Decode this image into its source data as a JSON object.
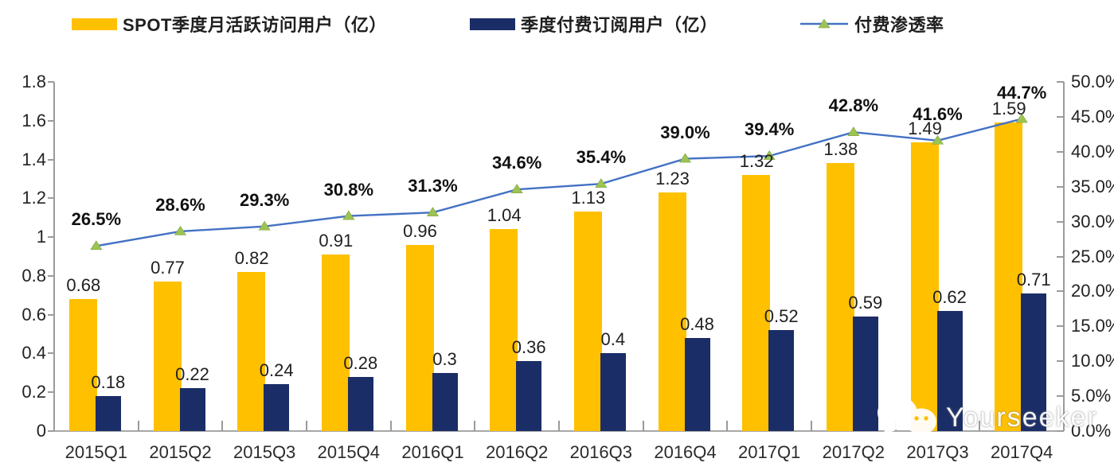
{
  "legend": [
    {
      "label": "SPOT季度月活跃访问用户（亿）"
    },
    {
      "label": "季度付费订阅用户（亿）"
    },
    {
      "label": "付费渗透率"
    }
  ],
  "chart_data": {
    "type": "bar+line-combo",
    "title": "",
    "categories": [
      "2015Q1",
      "2015Q2",
      "2015Q3",
      "2015Q4",
      "2016Q1",
      "2016Q2",
      "2016Q3",
      "2016Q4",
      "2017Q1",
      "2017Q2",
      "2017Q3",
      "2017Q4"
    ],
    "series": [
      {
        "name": "SPOT季度月活跃访问用户（亿）",
        "type": "bar",
        "axis": "left",
        "color": "#FFC000",
        "values": [
          0.68,
          0.77,
          0.82,
          0.91,
          0.96,
          1.04,
          1.13,
          1.23,
          1.32,
          1.38,
          1.49,
          1.59
        ],
        "labels": [
          "0.68",
          "0.77",
          "0.82",
          "0.91",
          "0.96",
          "1.04",
          "1.13",
          "1.23",
          "1.32",
          "1.38",
          "1.49",
          "1.59"
        ]
      },
      {
        "name": "季度付费订阅用户（亿）",
        "type": "bar",
        "axis": "left",
        "color": "#1B2D66",
        "values": [
          0.18,
          0.22,
          0.24,
          0.28,
          0.3,
          0.36,
          0.4,
          0.48,
          0.52,
          0.59,
          0.62,
          0.71
        ],
        "labels": [
          "0.18",
          "0.22",
          "0.24",
          "0.28",
          "0.3",
          "0.36",
          "0.4",
          "0.48",
          "0.52",
          "0.59",
          "0.62",
          "0.71"
        ]
      },
      {
        "name": "付费渗透率",
        "type": "line",
        "axis": "right",
        "color": "#4472C4",
        "marker": "triangle",
        "marker_color": "#9CC353",
        "values": [
          26.5,
          28.6,
          29.3,
          30.8,
          31.3,
          34.6,
          35.4,
          39.0,
          39.4,
          42.8,
          41.6,
          44.7
        ],
        "labels": [
          "26.5%",
          "28.6%",
          "29.3%",
          "30.8%",
          "31.3%",
          "34.6%",
          "35.4%",
          "39.0%",
          "39.4%",
          "42.8%",
          "41.6%",
          "44.7%"
        ]
      }
    ],
    "left_axis": {
      "min": 0,
      "max": 1.8,
      "step": 0.2,
      "tick_labels": [
        "1.8",
        "1.6",
        "1.4",
        "1.2",
        "1",
        "0.8",
        "0.6",
        "0.4",
        "0.2",
        "0"
      ]
    },
    "right_axis": {
      "min": 0,
      "max": 50,
      "step": 5,
      "unit": "%",
      "tick_labels": [
        "50.0%",
        "45.0%",
        "40.0%",
        "35.0%",
        "30.0%",
        "25.0%",
        "20.0%",
        "15.0%",
        "10.0%",
        "5.0%",
        "0.0%"
      ]
    },
    "grid": false,
    "legend_position": "top"
  },
  "watermark": {
    "text": "Yourseeker",
    "icon": "wechat-icon"
  },
  "colors": {
    "bar_mau": "#FFC000",
    "bar_subs": "#1B2D66",
    "line": "#4472C4",
    "marker": "#9CC353"
  }
}
